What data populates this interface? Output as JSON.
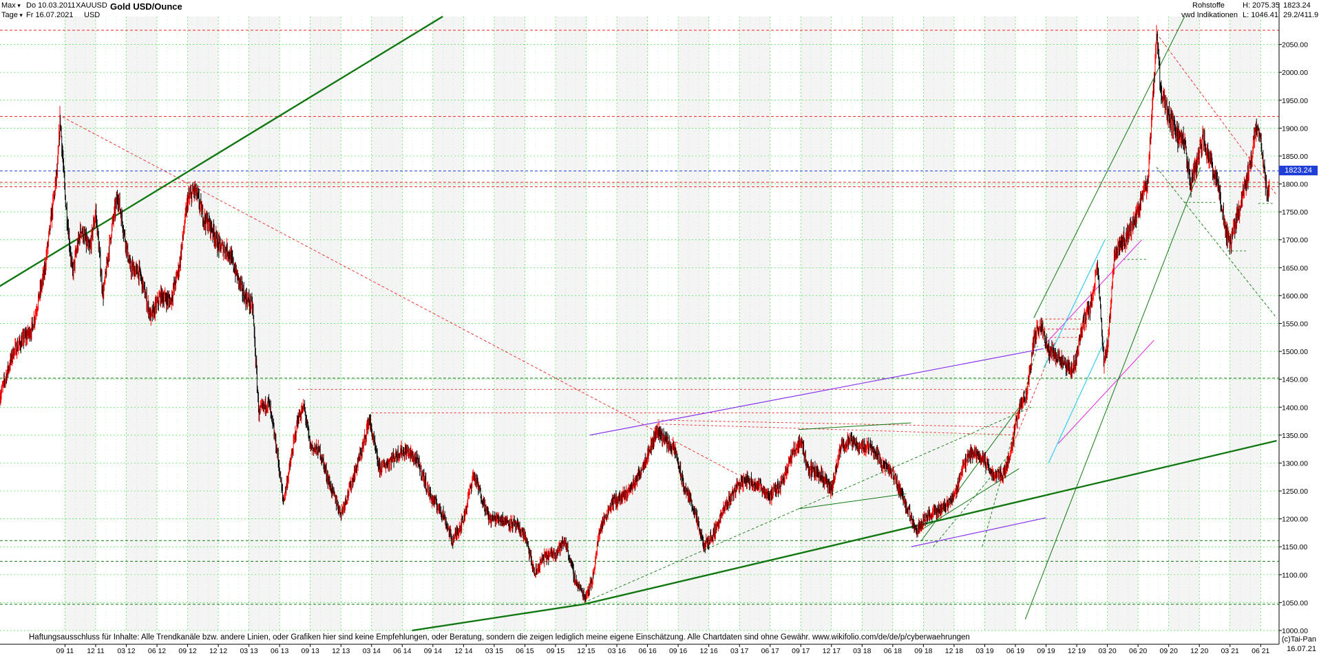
{
  "header": {
    "range_label": "Max",
    "from_label": "Do 10.03.2011",
    "to_label": "Fr 16.07.2021",
    "interval_label": "Tage",
    "symbol": "XAUUSD",
    "currency": "USD",
    "title": "Gold USD/Ounce",
    "category": "Rohstoffe",
    "source": "vwd Indikationen",
    "high_label": "H: 2075.35",
    "low_label": "L: 1046.41",
    "last_value": "1823.24",
    "extra_value": "29.2/411.9"
  },
  "footer": {
    "disclaimer": "Haftungsausschluss für Inhalte: Alle Trendkanäle bzw. andere Linien, oder Grafiken hier sind keine Empfehlungen, oder Beratung, sondern die zeigen lediglich meine eigene Einschätzung. Alle Chartdaten sind ohne Gewähr.  www.wikifolio.com/de/de/p/cyberwaehrungen",
    "credit": "(c)Tai-Pan",
    "end_date": "16.07.21"
  },
  "colors": {
    "up": "#ff0000",
    "down": "#000000",
    "grid": "#44dd44",
    "trend_green": "#117711",
    "trend_purple": "#8833ee",
    "trend_cyan": "#33ccee",
    "trend_magenta": "#dd44dd",
    "level_red": "#ee2222",
    "last_blue": "#1f3fd8"
  },
  "chart_data": {
    "type": "candlestick",
    "title": "Gold USD/Ounce",
    "y_axis_side": "right",
    "ylim": [
      1000,
      2100
    ],
    "y_ticks": [
      1000,
      1050,
      1100,
      1150,
      1200,
      1250,
      1300,
      1350,
      1400,
      1450,
      1500,
      1550,
      1600,
      1650,
      1700,
      1750,
      1800,
      1850,
      1900,
      1950,
      2000,
      2050
    ],
    "y_tick_labels": [
      "1000.00",
      "1050.00",
      "1100.00",
      "1150.00",
      "1200.00",
      "1250.00",
      "1300.00",
      "1350.00",
      "1400.00",
      "1450.00",
      "1500.00",
      "1550.00",
      "1600.00",
      "1650.00",
      "1700.00",
      "1750.00",
      "1800.00",
      "1850.00",
      "1900.00",
      "1950.00",
      "2000.00",
      "2050.00"
    ],
    "x_ticks": [
      {
        "t": 2011.72,
        "label": "09 11"
      },
      {
        "t": 2011.97,
        "label": "12 11"
      },
      {
        "t": 2012.22,
        "label": "03 12"
      },
      {
        "t": 2012.47,
        "label": "06 12"
      },
      {
        "t": 2012.72,
        "label": "09 12"
      },
      {
        "t": 2012.97,
        "label": "12 12"
      },
      {
        "t": 2013.22,
        "label": "03 13"
      },
      {
        "t": 2013.47,
        "label": "06 13"
      },
      {
        "t": 2013.72,
        "label": "09 13"
      },
      {
        "t": 2013.97,
        "label": "12 13"
      },
      {
        "t": 2014.22,
        "label": "03 14"
      },
      {
        "t": 2014.47,
        "label": "06 14"
      },
      {
        "t": 2014.72,
        "label": "09 14"
      },
      {
        "t": 2014.97,
        "label": "12 14"
      },
      {
        "t": 2015.22,
        "label": "03 15"
      },
      {
        "t": 2015.47,
        "label": "06 15"
      },
      {
        "t": 2015.72,
        "label": "09 15"
      },
      {
        "t": 2015.97,
        "label": "12 15"
      },
      {
        "t": 2016.22,
        "label": "03 16"
      },
      {
        "t": 2016.47,
        "label": "06 16"
      },
      {
        "t": 2016.72,
        "label": "09 16"
      },
      {
        "t": 2016.97,
        "label": "12 16"
      },
      {
        "t": 2017.22,
        "label": "03 17"
      },
      {
        "t": 2017.47,
        "label": "06 17"
      },
      {
        "t": 2017.72,
        "label": "09 17"
      },
      {
        "t": 2017.97,
        "label": "12 17"
      },
      {
        "t": 2018.22,
        "label": "03 18"
      },
      {
        "t": 2018.47,
        "label": "06 18"
      },
      {
        "t": 2018.72,
        "label": "09 18"
      },
      {
        "t": 2018.97,
        "label": "12 18"
      },
      {
        "t": 2019.22,
        "label": "03 19"
      },
      {
        "t": 2019.47,
        "label": "06 19"
      },
      {
        "t": 2019.72,
        "label": "09 19"
      },
      {
        "t": 2019.97,
        "label": "12 19"
      },
      {
        "t": 2020.22,
        "label": "03 20"
      },
      {
        "t": 2020.47,
        "label": "06 20"
      },
      {
        "t": 2020.72,
        "label": "09 20"
      },
      {
        "t": 2020.97,
        "label": "12 20"
      },
      {
        "t": 2021.22,
        "label": "03 21"
      },
      {
        "t": 2021.47,
        "label": "06 21"
      }
    ],
    "price_path": [
      [
        2011.19,
        1420
      ],
      [
        2011.3,
        1500
      ],
      [
        2011.45,
        1540
      ],
      [
        2011.55,
        1640
      ],
      [
        2011.66,
        1830
      ],
      [
        2011.68,
        1920
      ],
      [
        2011.72,
        1780
      ],
      [
        2011.78,
        1640
      ],
      [
        2011.85,
        1720
      ],
      [
        2011.92,
        1680
      ],
      [
        2011.97,
        1750
      ],
      [
        2012.03,
        1600
      ],
      [
        2012.1,
        1720
      ],
      [
        2012.15,
        1780
      ],
      [
        2012.25,
        1650
      ],
      [
        2012.33,
        1640
      ],
      [
        2012.42,
        1560
      ],
      [
        2012.5,
        1600
      ],
      [
        2012.58,
        1590
      ],
      [
        2012.65,
        1650
      ],
      [
        2012.72,
        1770
      ],
      [
        2012.78,
        1790
      ],
      [
        2012.85,
        1740
      ],
      [
        2012.92,
        1720
      ],
      [
        2012.97,
        1690
      ],
      [
        2013.05,
        1680
      ],
      [
        2013.1,
        1650
      ],
      [
        2013.18,
        1600
      ],
      [
        2013.25,
        1580
      ],
      [
        2013.3,
        1390
      ],
      [
        2013.38,
        1410
      ],
      [
        2013.45,
        1320
      ],
      [
        2013.5,
        1230
      ],
      [
        2013.55,
        1290
      ],
      [
        2013.62,
        1380
      ],
      [
        2013.67,
        1400
      ],
      [
        2013.72,
        1330
      ],
      [
        2013.8,
        1320
      ],
      [
        2013.88,
        1260
      ],
      [
        2013.97,
        1210
      ],
      [
        2014.05,
        1260
      ],
      [
        2014.15,
        1330
      ],
      [
        2014.2,
        1380
      ],
      [
        2014.28,
        1290
      ],
      [
        2014.35,
        1300
      ],
      [
        2014.45,
        1320
      ],
      [
        2014.52,
        1320
      ],
      [
        2014.6,
        1300
      ],
      [
        2014.7,
        1240
      ],
      [
        2014.8,
        1210
      ],
      [
        2014.88,
        1160
      ],
      [
        2014.97,
        1200
      ],
      [
        2015.05,
        1280
      ],
      [
        2015.1,
        1250
      ],
      [
        2015.18,
        1200
      ],
      [
        2015.28,
        1200
      ],
      [
        2015.38,
        1190
      ],
      [
        2015.47,
        1170
      ],
      [
        2015.55,
        1100
      ],
      [
        2015.62,
        1130
      ],
      [
        2015.72,
        1140
      ],
      [
        2015.8,
        1160
      ],
      [
        2015.88,
        1090
      ],
      [
        2015.96,
        1060
      ],
      [
        2016.02,
        1090
      ],
      [
        2016.08,
        1180
      ],
      [
        2016.18,
        1230
      ],
      [
        2016.28,
        1240
      ],
      [
        2016.38,
        1270
      ],
      [
        2016.48,
        1320
      ],
      [
        2016.55,
        1360
      ],
      [
        2016.62,
        1340
      ],
      [
        2016.7,
        1320
      ],
      [
        2016.76,
        1260
      ],
      [
        2016.83,
        1230
      ],
      [
        2016.93,
        1150
      ],
      [
        2017.0,
        1170
      ],
      [
        2017.1,
        1220
      ],
      [
        2017.2,
        1260
      ],
      [
        2017.28,
        1270
      ],
      [
        2017.38,
        1260
      ],
      [
        2017.47,
        1240
      ],
      [
        2017.55,
        1260
      ],
      [
        2017.66,
        1320
      ],
      [
        2017.72,
        1340
      ],
      [
        2017.78,
        1290
      ],
      [
        2017.88,
        1280
      ],
      [
        2017.97,
        1250
      ],
      [
        2018.05,
        1330
      ],
      [
        2018.12,
        1340
      ],
      [
        2018.2,
        1330
      ],
      [
        2018.3,
        1330
      ],
      [
        2018.38,
        1300
      ],
      [
        2018.47,
        1280
      ],
      [
        2018.55,
        1240
      ],
      [
        2018.62,
        1200
      ],
      [
        2018.67,
        1180
      ],
      [
        2018.72,
        1200
      ],
      [
        2018.8,
        1210
      ],
      [
        2018.88,
        1220
      ],
      [
        2018.97,
        1240
      ],
      [
        2019.05,
        1300
      ],
      [
        2019.12,
        1320
      ],
      [
        2019.2,
        1310
      ],
      [
        2019.28,
        1280
      ],
      [
        2019.38,
        1280
      ],
      [
        2019.44,
        1330
      ],
      [
        2019.5,
        1400
      ],
      [
        2019.56,
        1420
      ],
      [
        2019.62,
        1520
      ],
      [
        2019.67,
        1550
      ],
      [
        2019.75,
        1500
      ],
      [
        2019.82,
        1490
      ],
      [
        2019.88,
        1470
      ],
      [
        2019.95,
        1470
      ],
      [
        2020.02,
        1550
      ],
      [
        2020.08,
        1580
      ],
      [
        2020.14,
        1650
      ],
      [
        2020.19,
        1480
      ],
      [
        2020.22,
        1510
      ],
      [
        2020.28,
        1680
      ],
      [
        2020.35,
        1700
      ],
      [
        2020.42,
        1720
      ],
      [
        2020.48,
        1760
      ],
      [
        2020.55,
        1810
      ],
      [
        2020.6,
        1980
      ],
      [
        2020.62,
        2070
      ],
      [
        2020.66,
        1960
      ],
      [
        2020.72,
        1920
      ],
      [
        2020.78,
        1890
      ],
      [
        2020.85,
        1870
      ],
      [
        2020.9,
        1800
      ],
      [
        2020.95,
        1840
      ],
      [
        2021.0,
        1880
      ],
      [
        2021.05,
        1850
      ],
      [
        2021.12,
        1800
      ],
      [
        2021.18,
        1720
      ],
      [
        2021.22,
        1690
      ],
      [
        2021.3,
        1760
      ],
      [
        2021.38,
        1830
      ],
      [
        2021.43,
        1900
      ],
      [
        2021.47,
        1880
      ],
      [
        2021.52,
        1780
      ],
      [
        2021.54,
        1800
      ],
      [
        2021.54,
        1823.24
      ]
    ],
    "last_value": 1823.24,
    "high": 2075.35,
    "low": 1046.41,
    "horizontal_levels": [
      {
        "y": 2075.35,
        "color": "red",
        "style": "dashed"
      },
      {
        "y": 1921,
        "color": "red",
        "style": "dashed"
      },
      {
        "y": 1823.24,
        "color": "blue",
        "style": "dashed"
      },
      {
        "y": 1803,
        "color": "red",
        "style": "dashed"
      },
      {
        "y": 1795,
        "color": "red",
        "style": "dashed"
      },
      {
        "y": 1452,
        "color": "green",
        "style": "dashed"
      },
      {
        "y": 1161,
        "color": "green",
        "style": "dashed"
      },
      {
        "y": 1124,
        "color": "green",
        "style": "dashed"
      },
      {
        "y": 1047,
        "color": "green",
        "style": "dashed"
      }
    ],
    "trend_lines": [
      {
        "p": [
          [
            2011.1,
            1605
          ],
          [
            2014.8,
            2100
          ]
        ],
        "color": "green",
        "width": 2.4
      },
      {
        "p": [
          [
            2015.95,
            1047
          ],
          [
            2021.6,
            1340
          ]
        ],
        "color": "green",
        "width": 2.4
      },
      {
        "p": [
          [
            2014.55,
            1000
          ],
          [
            2015.95,
            1047
          ]
        ],
        "color": "green",
        "width": 2.4
      },
      {
        "p": [
          [
            2016.0,
            1350
          ],
          [
            2019.7,
            1505
          ]
        ],
        "color": "purple",
        "width": 1.2
      },
      {
        "p": [
          [
            2018.62,
            1150
          ],
          [
            2019.72,
            1202
          ]
        ],
        "color": "purple",
        "width": 1.2
      },
      {
        "p": [
          [
            2019.7,
            1510
          ],
          [
            2020.5,
            1700
          ]
        ],
        "color": "magenta",
        "width": 1.2
      },
      {
        "p": [
          [
            2019.82,
            1335
          ],
          [
            2020.6,
            1520
          ]
        ],
        "color": "magenta",
        "width": 1.2
      },
      {
        "p": [
          [
            2019.7,
            1470
          ],
          [
            2020.2,
            1700
          ]
        ],
        "color": "cyan",
        "width": 1.2
      },
      {
        "p": [
          [
            2019.74,
            1300
          ],
          [
            2020.2,
            1520
          ]
        ],
        "color": "cyan",
        "width": 1.2
      },
      {
        "p": [
          [
            2019.55,
            1020
          ],
          [
            2020.98,
            1830
          ]
        ],
        "color": "green",
        "width": 1
      },
      {
        "p": [
          [
            2019.62,
            1560
          ],
          [
            2020.85,
            2100
          ]
        ],
        "color": "green",
        "width": 1
      },
      {
        "p": [
          [
            2018.7,
            1160
          ],
          [
            2019.5,
            1400
          ]
        ],
        "color": "green",
        "width": 1
      },
      {
        "p": [
          [
            2018.7,
            1180
          ],
          [
            2019.5,
            1290
          ]
        ],
        "color": "green",
        "width": 1
      },
      {
        "p": [
          [
            2017.7,
            1360
          ],
          [
            2018.62,
            1372
          ]
        ],
        "color": "green",
        "width": 1
      },
      {
        "p": [
          [
            2017.7,
            1218
          ],
          [
            2018.58,
            1245
          ]
        ],
        "color": "green",
        "width": 1
      }
    ],
    "dashed_lines": [
      {
        "p": [
          [
            2011.7,
            1920
          ],
          [
            2017.2,
            1280
          ]
        ],
        "color": "red"
      },
      {
        "p": [
          [
            2020.62,
            2070
          ],
          [
            2021.6,
            1780
          ]
        ],
        "color": "red"
      },
      {
        "p": [
          [
            2020.62,
            1830
          ],
          [
            2021.6,
            1560
          ]
        ],
        "color": "green"
      },
      {
        "p": [
          [
            2015.95,
            1050
          ],
          [
            2019.6,
            1400
          ]
        ],
        "color": "green"
      },
      {
        "p": [
          [
            2018.8,
            1150
          ],
          [
            2019.4,
            1310
          ]
        ],
        "color": "green"
      },
      {
        "p": [
          [
            2019.2,
            1150
          ],
          [
            2019.65,
            1510
          ]
        ],
        "color": "green"
      },
      {
        "p": [
          [
            2019.35,
            1280
          ],
          [
            2019.8,
            1520
          ]
        ],
        "color": "red"
      }
    ],
    "resistance_segments": [
      {
        "p": [
          [
            2013.62,
            1432
          ],
          [
            2019.6,
            1432
          ]
        ],
        "color": "red"
      },
      {
        "p": [
          [
            2014.22,
            1390
          ],
          [
            2019.5,
            1390
          ]
        ],
        "color": "red"
      },
      {
        "p": [
          [
            2016.55,
            1377
          ],
          [
            2019.5,
            1364
          ]
        ],
        "color": "red"
      },
      {
        "p": [
          [
            2016.55,
            1370
          ],
          [
            2019.5,
            1350
          ]
        ],
        "color": "red"
      },
      {
        "p": [
          [
            2019.68,
            1558
          ],
          [
            2020.0,
            1558
          ]
        ],
        "color": "red"
      },
      {
        "p": [
          [
            2019.7,
            1540
          ],
          [
            2020.0,
            1540
          ]
        ],
        "color": "red"
      },
      {
        "p": [
          [
            2019.72,
            1525
          ],
          [
            2020.0,
            1525
          ]
        ],
        "color": "red"
      },
      {
        "p": [
          [
            2020.35,
            1665
          ],
          [
            2020.55,
            1665
          ]
        ],
        "color": "green"
      },
      {
        "p": [
          [
            2020.85,
            1767
          ],
          [
            2021.1,
            1767
          ]
        ],
        "color": "green"
      },
      {
        "p": [
          [
            2021.2,
            1680
          ],
          [
            2021.35,
            1680
          ]
        ],
        "color": "green"
      },
      {
        "p": [
          [
            2021.45,
            1765
          ],
          [
            2021.57,
            1765
          ]
        ],
        "color": "green"
      }
    ]
  }
}
